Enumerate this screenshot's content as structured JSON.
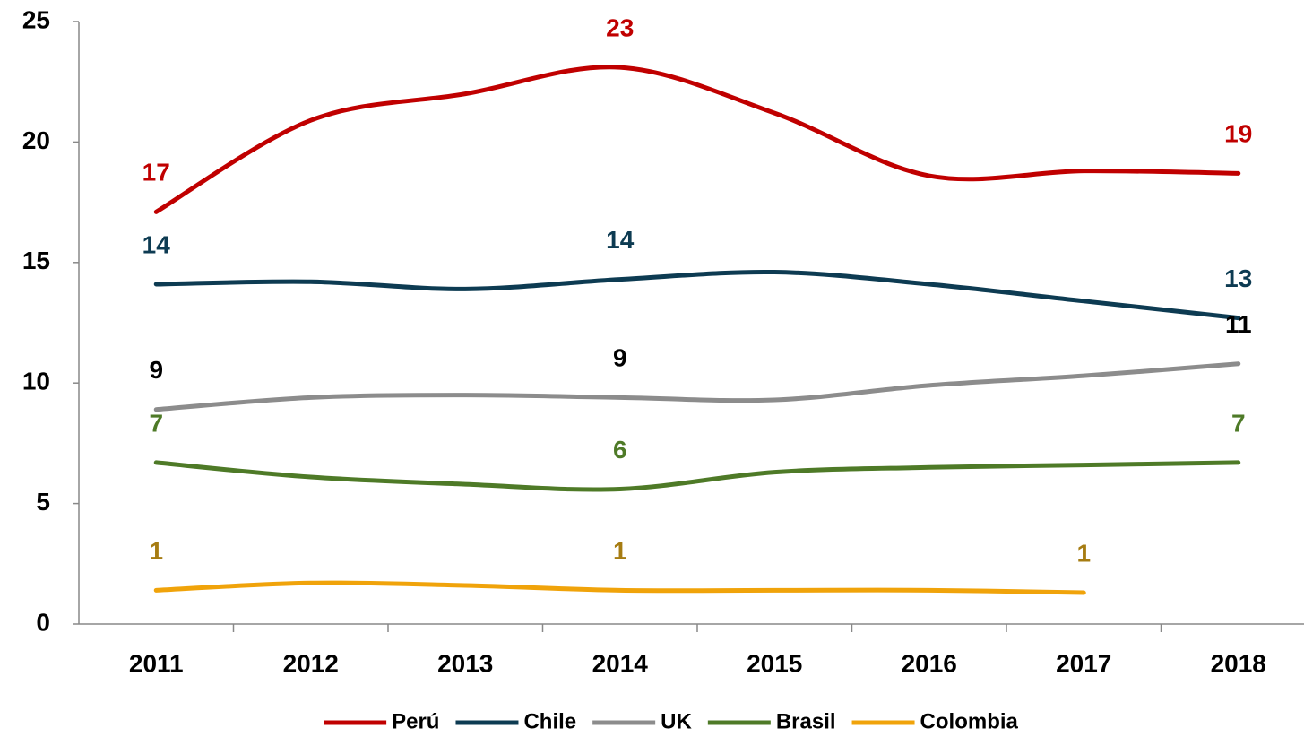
{
  "chart_data": {
    "type": "line",
    "categories": [
      "2011",
      "2012",
      "2013",
      "2014",
      "2015",
      "2016",
      "2017",
      "2018"
    ],
    "ylim": [
      0,
      25
    ],
    "yticks": [
      0,
      5,
      10,
      15,
      20,
      25
    ],
    "legend": "bottom",
    "smooth": true,
    "series": [
      {
        "name": "Perú",
        "color": "#c00000",
        "label_color": "#c00000",
        "values": [
          17.1,
          20.9,
          22.0,
          23.1,
          21.2,
          18.6,
          18.8,
          18.7
        ],
        "value_labels": [
          "17",
          null,
          null,
          "23",
          null,
          null,
          null,
          "19"
        ]
      },
      {
        "name": "Chile",
        "color": "#0d3b52",
        "label_color": "#0d3b52",
        "values": [
          14.1,
          14.2,
          13.9,
          14.3,
          14.6,
          14.1,
          13.4,
          12.7
        ],
        "value_labels": [
          "14",
          null,
          null,
          "14",
          null,
          null,
          null,
          "13"
        ]
      },
      {
        "name": "UK",
        "color": "#8c8c8c",
        "label_color": "#000000",
        "values": [
          8.9,
          9.4,
          9.5,
          9.4,
          9.3,
          9.9,
          10.3,
          10.8
        ],
        "value_labels": [
          "9",
          null,
          null,
          "9",
          null,
          null,
          null,
          "11"
        ]
      },
      {
        "name": "Brasil",
        "color": "#4e7a27",
        "label_color": "#4e7a27",
        "values": [
          6.7,
          6.1,
          5.8,
          5.6,
          6.3,
          6.5,
          6.6,
          6.7
        ],
        "value_labels": [
          "7",
          null,
          null,
          "6",
          null,
          null,
          null,
          "7"
        ]
      },
      {
        "name": "Colombia",
        "color": "#f0a30a",
        "label_color": "#a67c12",
        "values": [
          1.4,
          1.7,
          1.6,
          1.4,
          1.4,
          1.4,
          1.3,
          null
        ],
        "value_labels": [
          "1",
          null,
          null,
          "1",
          null,
          null,
          "1",
          null
        ]
      }
    ]
  }
}
